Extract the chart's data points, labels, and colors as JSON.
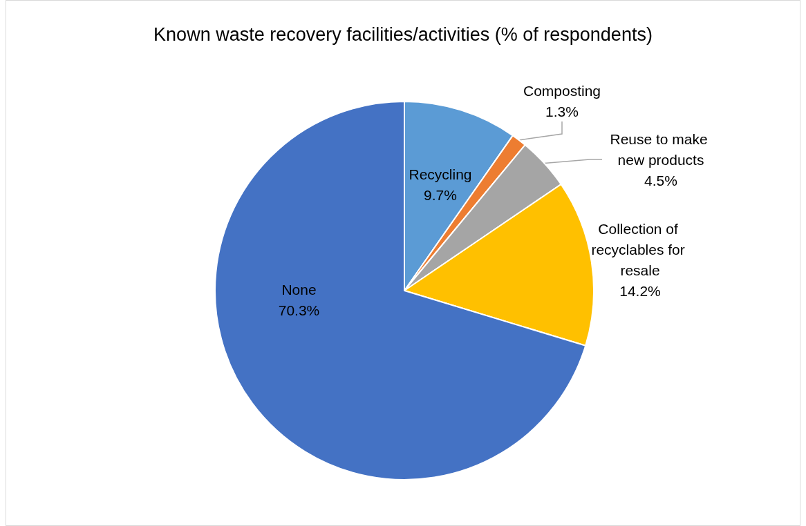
{
  "chart_data": {
    "type": "pie",
    "title": "Known waste recovery facilities/activities (% of respondents)",
    "categories": [
      "Recycling",
      "Composting",
      "Reuse to make new products",
      "Collection of recyclables for resale",
      "None"
    ],
    "values": [
      9.7,
      1.3,
      4.5,
      14.2,
      70.3
    ],
    "value_labels": [
      "9.7%",
      "1.3%",
      "4.5%",
      "14.2%",
      "70.3%"
    ],
    "colors": [
      "#5b9bd5",
      "#ed7d31",
      "#a5a5a5",
      "#ffc000",
      "#4472c4"
    ],
    "legend": false
  }
}
